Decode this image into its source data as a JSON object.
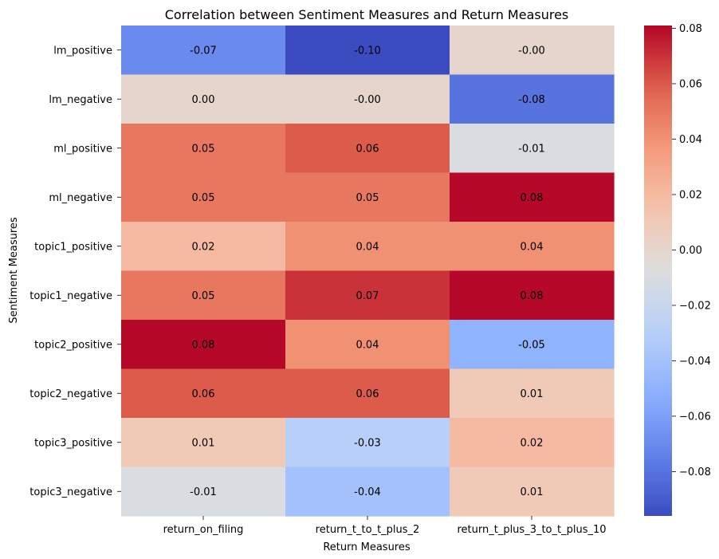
{
  "chart_data": {
    "type": "heatmap",
    "title": "Correlation between Sentiment Measures and Return Measures",
    "xlabel": "Return Measures",
    "ylabel": "Sentiment Measures",
    "columns": [
      "return_on_filing",
      "return_t_to_t_plus_2",
      "return_t_plus_3_to_t_plus_10"
    ],
    "rows": [
      "lm_positive",
      "lm_negative",
      "ml_positive",
      "ml_negative",
      "topic1_positive",
      "topic1_negative",
      "topic2_positive",
      "topic2_negative",
      "topic3_positive",
      "topic3_negative"
    ],
    "values": [
      [
        -0.07,
        -0.1,
        -0.0
      ],
      [
        0.0,
        -0.0,
        -0.08
      ],
      [
        0.05,
        0.06,
        -0.01
      ],
      [
        0.05,
        0.05,
        0.08
      ],
      [
        0.02,
        0.04,
        0.04
      ],
      [
        0.05,
        0.07,
        0.08
      ],
      [
        0.08,
        0.04,
        -0.05
      ],
      [
        0.06,
        0.06,
        0.01
      ],
      [
        0.01,
        -0.03,
        0.02
      ],
      [
        -0.01,
        -0.04,
        0.01
      ]
    ],
    "labels": [
      [
        "-0.07",
        "-0.10",
        "-0.00"
      ],
      [
        "0.00",
        "-0.00",
        "-0.08"
      ],
      [
        "0.05",
        "0.06",
        "-0.01"
      ],
      [
        "0.05",
        "0.05",
        "0.08"
      ],
      [
        "0.02",
        "0.04",
        "0.04"
      ],
      [
        "0.05",
        "0.07",
        "0.08"
      ],
      [
        "0.08",
        "0.04",
        "-0.05"
      ],
      [
        "0.06",
        "0.06",
        "0.01"
      ],
      [
        "0.01",
        "-0.03",
        "0.02"
      ],
      [
        "-0.01",
        "-0.04",
        "0.01"
      ]
    ],
    "colormap": "coolwarm",
    "color_range": [
      -0.096,
      0.081
    ],
    "colorbar_ticks": [
      0.08,
      0.06,
      0.04,
      0.02,
      0.0,
      -0.02,
      -0.04,
      -0.06,
      -0.08
    ],
    "colorbar_tick_labels": [
      "0.08",
      "0.06",
      "0.04",
      "0.02",
      "0.00",
      "−0.02",
      "−0.04",
      "−0.06",
      "−0.08"
    ],
    "grid": false,
    "legend": "colorbar-right"
  }
}
